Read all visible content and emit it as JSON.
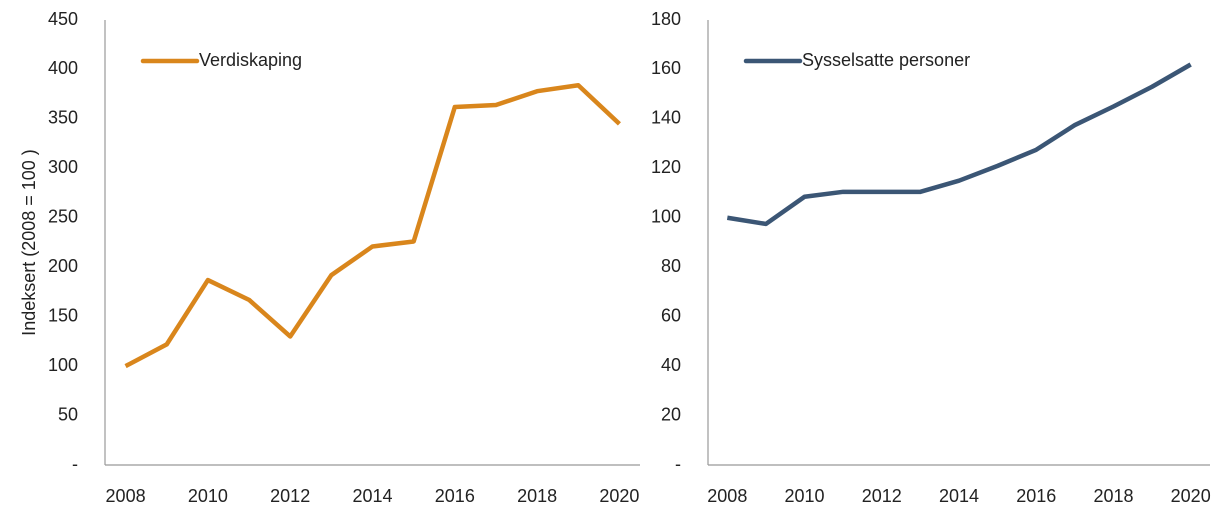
{
  "chart_data": [
    {
      "type": "line",
      "ylabel": "Indeksert (2008 = 100 )",
      "x": [
        2008,
        2009,
        2010,
        2011,
        2012,
        2013,
        2014,
        2015,
        2016,
        2017,
        2018,
        2019,
        2020
      ],
      "series": [
        {
          "name": "Verdiskaping",
          "color": "#d9861c",
          "values": [
            100,
            122,
            187,
            167,
            130,
            192,
            221,
            226,
            362,
            364,
            378,
            384,
            345
          ]
        }
      ],
      "xlim": [
        2007.5,
        2020.5
      ],
      "xticks": [
        2008,
        2010,
        2012,
        2014,
        2016,
        2018,
        2020
      ],
      "ylim": [
        0,
        450
      ],
      "yticks": [
        {
          "value": 0,
          "label": "-"
        },
        50,
        100,
        150,
        200,
        250,
        300,
        350,
        400,
        450
      ],
      "legend": "upper left"
    },
    {
      "type": "line",
      "x": [
        2008,
        2009,
        2010,
        2011,
        2012,
        2013,
        2014,
        2015,
        2016,
        2017,
        2018,
        2019,
        2020
      ],
      "series": [
        {
          "name": "Sysselsatte personer",
          "color": "#3b5675",
          "values": [
            100,
            97.5,
            108.5,
            110.5,
            110.5,
            110.5,
            115,
            121,
            127.5,
            137.5,
            145,
            153,
            162
          ]
        }
      ],
      "xlim": [
        2007.5,
        2020.5
      ],
      "xticks": [
        2008,
        2010,
        2012,
        2014,
        2016,
        2018,
        2020
      ],
      "ylim": [
        0,
        180
      ],
      "yticks": [
        {
          "value": 0,
          "label": "-"
        },
        20,
        40,
        60,
        80,
        100,
        120,
        140,
        160,
        180
      ],
      "legend": "upper left"
    }
  ]
}
